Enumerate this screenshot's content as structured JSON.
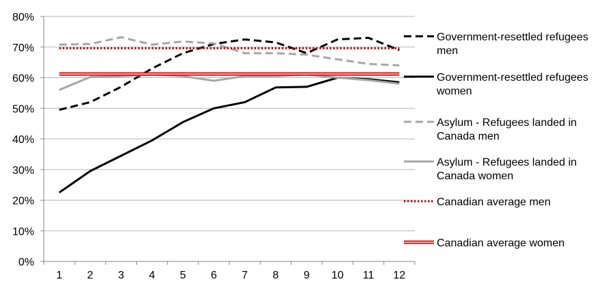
{
  "chart_data": {
    "type": "line",
    "title": "",
    "xlabel": "",
    "ylabel": "",
    "x": [
      1,
      2,
      3,
      4,
      5,
      6,
      7,
      8,
      9,
      10,
      11,
      12
    ],
    "x_tick_labels": [
      "1",
      "2",
      "3",
      "4",
      "5",
      "6",
      "7",
      "8",
      "9",
      "10",
      "11",
      "12"
    ],
    "ylim": [
      0,
      80
    ],
    "y_ticks": [
      0,
      10,
      20,
      30,
      40,
      50,
      60,
      70,
      80
    ],
    "y_tick_labels": [
      "0%",
      "10%",
      "20%",
      "30%",
      "40%",
      "50%",
      "60%",
      "70%",
      "80%"
    ],
    "grid": "horizontal",
    "legend_position": "right",
    "series": [
      {
        "name": "Government-resettled refugees men",
        "legend_lines": [
          "Government-resettled refugees",
          "men"
        ],
        "values": [
          49.5,
          52,
          57,
          63,
          68,
          71,
          72.5,
          71.5,
          68,
          72.5,
          73,
          69
        ],
        "color": "#000000",
        "style": "dashed"
      },
      {
        "name": "Government-resettled refugees women",
        "legend_lines": [
          "Government-resettled refugees",
          "women"
        ],
        "values": [
          22.5,
          29.5,
          34.5,
          39.5,
          45.5,
          50,
          52,
          56.8,
          57,
          60,
          59.5,
          58.5
        ],
        "color": "#000000",
        "style": "solid"
      },
      {
        "name": "Asylum - Refugees landed in Canada men",
        "legend_lines": [
          "Asylum - Refugees landed in",
          "Canada men"
        ],
        "values": [
          70.8,
          71,
          73.2,
          70.8,
          71.8,
          71.2,
          68,
          68,
          67.5,
          66,
          64.5,
          64
        ],
        "color": "#a6a6a6",
        "style": "dashed"
      },
      {
        "name": "Asylum - Refugees landed in Canada women",
        "legend_lines": [
          "Asylum - Refugees landed in",
          "Canada women"
        ],
        "values": [
          56,
          60.2,
          60.5,
          61,
          60.5,
          59,
          60.5,
          60.5,
          61,
          60,
          59.2,
          58
        ],
        "color": "#a6a6a6",
        "style": "solid"
      },
      {
        "name": "Canadian average men",
        "legend_lines": [
          "Canadian average men"
        ],
        "values": [
          69.6,
          69.6,
          69.6,
          69.6,
          69.6,
          69.6,
          69.6,
          69.6,
          69.6,
          69.6,
          69.6,
          69.6
        ],
        "color": "#c00000",
        "style": "dotted"
      },
      {
        "name": "Canadian average women",
        "legend_lines": [
          "Canadian average women"
        ],
        "values": [
          61.2,
          61.2,
          61.2,
          61.2,
          61.2,
          61.2,
          61.2,
          61.2,
          61.2,
          61.2,
          61.2,
          61.2
        ],
        "color": "#e00000",
        "style": "double"
      }
    ]
  }
}
